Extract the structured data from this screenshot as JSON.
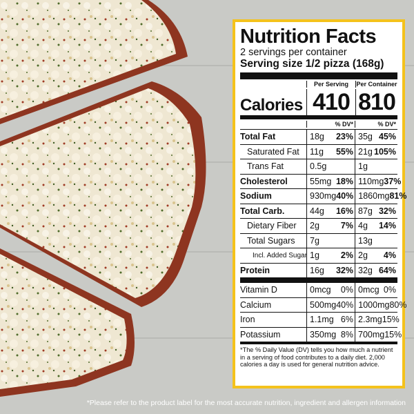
{
  "label": {
    "title": "Nutrition Facts",
    "servings": "2 servings per container",
    "serving_size": "Serving size 1/2 pizza (168g)",
    "col_per_serving": "Per Serving",
    "col_per_container": "Per Container",
    "calories_label": "Calories",
    "calories_per_serving": "410",
    "calories_per_container": "810",
    "dv_header": "% DV*",
    "nutrients": [
      {
        "name": "Total Fat",
        "ps_amt": "18g",
        "ps_dv": "23%",
        "pc_amt": "35g",
        "pc_dv": "45%"
      },
      {
        "name": "Saturated Fat",
        "ps_amt": "11g",
        "ps_dv": "55%",
        "pc_amt": "21g",
        "pc_dv": "105%"
      },
      {
        "name": "Trans Fat",
        "ps_amt": "0.5g",
        "ps_dv": "",
        "pc_amt": "1g",
        "pc_dv": ""
      },
      {
        "name": "Cholesterol",
        "ps_amt": "55mg",
        "ps_dv": "18%",
        "pc_amt": "110mg",
        "pc_dv": "37%"
      },
      {
        "name": "Sodium",
        "ps_amt": "930mg",
        "ps_dv": "40%",
        "pc_amt": "1860mg",
        "pc_dv": "81%"
      },
      {
        "name": "Total Carb.",
        "ps_amt": "44g",
        "ps_dv": "16%",
        "pc_amt": "87g",
        "pc_dv": "32%"
      },
      {
        "name": "Dietary Fiber",
        "ps_amt": "2g",
        "ps_dv": "7%",
        "pc_amt": "4g",
        "pc_dv": "14%"
      },
      {
        "name": "Total Sugars",
        "ps_amt": "7g",
        "ps_dv": "",
        "pc_amt": "13g",
        "pc_dv": ""
      },
      {
        "name": "Incl. Added Sugars",
        "ps_amt": "1g",
        "ps_dv": "2%",
        "pc_amt": "2g",
        "pc_dv": "4%"
      },
      {
        "name": "Protein",
        "ps_amt": "16g",
        "ps_dv": "32%",
        "pc_amt": "32g",
        "pc_dv": "64%"
      }
    ],
    "vitamins": [
      {
        "name": "Vitamin D",
        "ps_amt": "0mcg",
        "ps_dv": "0%",
        "pc_amt": "0mcg",
        "pc_dv": "0%"
      },
      {
        "name": "Calcium",
        "ps_amt": "500mg",
        "ps_dv": "40%",
        "pc_amt": "1000mg",
        "pc_dv": "80%"
      },
      {
        "name": "Iron",
        "ps_amt": "1.1mg",
        "ps_dv": "6%",
        "pc_amt": "2.3mg",
        "pc_dv": "15%"
      },
      {
        "name": "Potassium",
        "ps_amt": "350mg",
        "ps_dv": "8%",
        "pc_amt": "700mg",
        "pc_dv": "15%"
      }
    ],
    "footnote": "*The % Daily Value (DV) tells you how much a nutrient in a serving of food contributes to a daily diet. 2,000 calories a day is used for general nutrition advice."
  },
  "disclaimer": "*Please refer to the product label for the most accurate nutrition, ingredient and allergen information",
  "colors": {
    "label_border": "#f4c21c",
    "wood": "#c9cac6"
  }
}
